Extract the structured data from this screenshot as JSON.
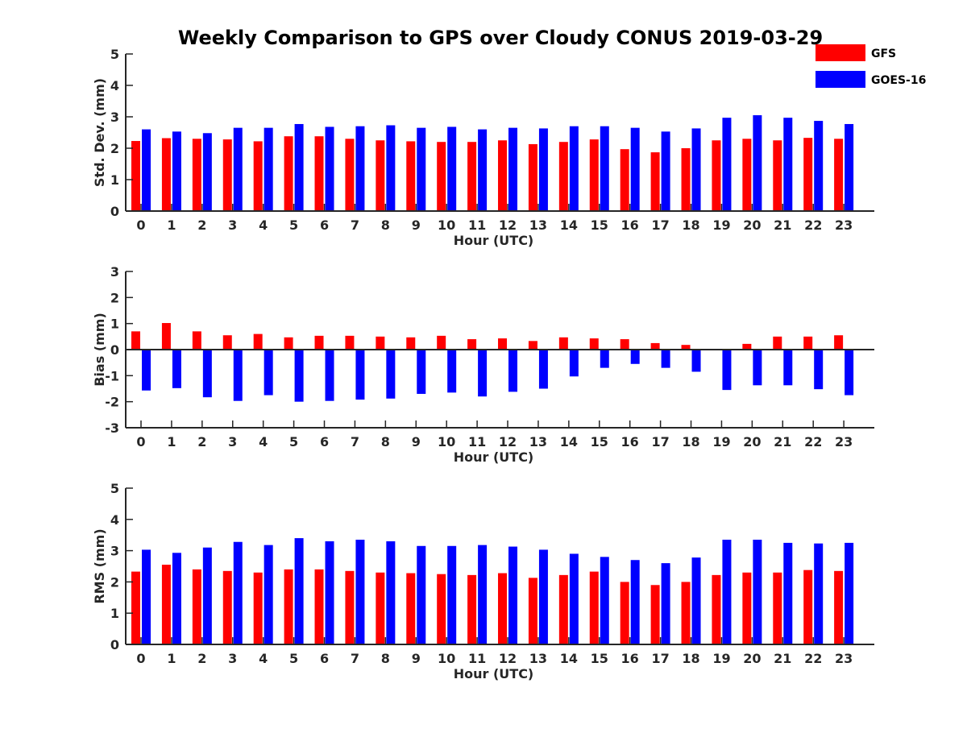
{
  "chart_data": {
    "type": "bar",
    "title": "Weekly Comparison to GPS over Cloudy CONUS 2019-03-29",
    "legend": {
      "placement": "top-right",
      "entries": [
        {
          "name": "GFS",
          "color": "#ff0000"
        },
        {
          "name": "GOES-16",
          "color": "#0000ff"
        }
      ]
    },
    "categories": [
      "0",
      "1",
      "2",
      "3",
      "4",
      "5",
      "6",
      "7",
      "8",
      "9",
      "10",
      "11",
      "12",
      "13",
      "14",
      "15",
      "16",
      "17",
      "18",
      "19",
      "20",
      "21",
      "22",
      "23"
    ],
    "panels": [
      {
        "id": "stddev",
        "ylabel": "Std. Dev. (mm)",
        "xlabel": "Hour (UTC)",
        "ylim": [
          0,
          5
        ],
        "yticks": [
          0,
          1,
          2,
          3,
          4,
          5
        ],
        "series": [
          {
            "name": "GFS",
            "color": "#ff0000",
            "values": [
              2.23,
              2.32,
              2.3,
              2.28,
              2.22,
              2.38,
              2.38,
              2.3,
              2.25,
              2.22,
              2.2,
              2.2,
              2.25,
              2.13,
              2.2,
              2.28,
              1.97,
              1.87,
              2.0,
              2.25,
              2.3,
              2.25,
              2.33,
              2.3
            ]
          },
          {
            "name": "GOES-16",
            "color": "#0000ff",
            "values": [
              2.6,
              2.53,
              2.48,
              2.65,
              2.65,
              2.77,
              2.68,
              2.7,
              2.73,
              2.65,
              2.68,
              2.6,
              2.65,
              2.63,
              2.7,
              2.7,
              2.65,
              2.53,
              2.63,
              2.97,
              3.05,
              2.97,
              2.87,
              2.77
            ]
          }
        ]
      },
      {
        "id": "bias",
        "ylabel": "Bias (mm)",
        "xlabel": "Hour (UTC)",
        "ylim": [
          -3,
          3
        ],
        "yticks": [
          -3,
          -2,
          -1,
          0,
          1,
          2,
          3
        ],
        "series": [
          {
            "name": "GFS",
            "color": "#ff0000",
            "values": [
              0.7,
              1.02,
              0.7,
              0.55,
              0.6,
              0.47,
              0.53,
              0.53,
              0.5,
              0.47,
              0.53,
              0.4,
              0.43,
              0.33,
              0.47,
              0.43,
              0.4,
              0.25,
              0.18,
              0.0,
              0.22,
              0.5,
              0.5,
              0.55
            ]
          },
          {
            "name": "GOES-16",
            "color": "#0000ff",
            "values": [
              -1.57,
              -1.48,
              -1.83,
              -1.97,
              -1.75,
              -2.0,
              -1.97,
              -1.92,
              -1.88,
              -1.7,
              -1.65,
              -1.8,
              -1.62,
              -1.5,
              -1.03,
              -0.7,
              -0.55,
              -0.7,
              -0.85,
              -1.55,
              -1.37,
              -1.37,
              -1.52,
              -1.75
            ]
          }
        ]
      },
      {
        "id": "rms",
        "ylabel": "RMS (mm)",
        "xlabel": "Hour (UTC)",
        "ylim": [
          0,
          5
        ],
        "yticks": [
          0,
          1,
          2,
          3,
          4,
          5
        ],
        "series": [
          {
            "name": "GFS",
            "color": "#ff0000",
            "values": [
              2.33,
              2.55,
              2.4,
              2.35,
              2.3,
              2.4,
              2.4,
              2.35,
              2.3,
              2.28,
              2.25,
              2.22,
              2.28,
              2.13,
              2.22,
              2.33,
              2.0,
              1.9,
              2.0,
              2.22,
              2.3,
              2.3,
              2.38,
              2.35
            ]
          },
          {
            "name": "GOES-16",
            "color": "#0000ff",
            "values": [
              3.03,
              2.93,
              3.1,
              3.28,
              3.18,
              3.4,
              3.3,
              3.35,
              3.3,
              3.15,
              3.15,
              3.18,
              3.13,
              3.03,
              2.9,
              2.8,
              2.7,
              2.6,
              2.78,
              3.35,
              3.35,
              3.25,
              3.23,
              3.25
            ]
          }
        ]
      }
    ]
  }
}
